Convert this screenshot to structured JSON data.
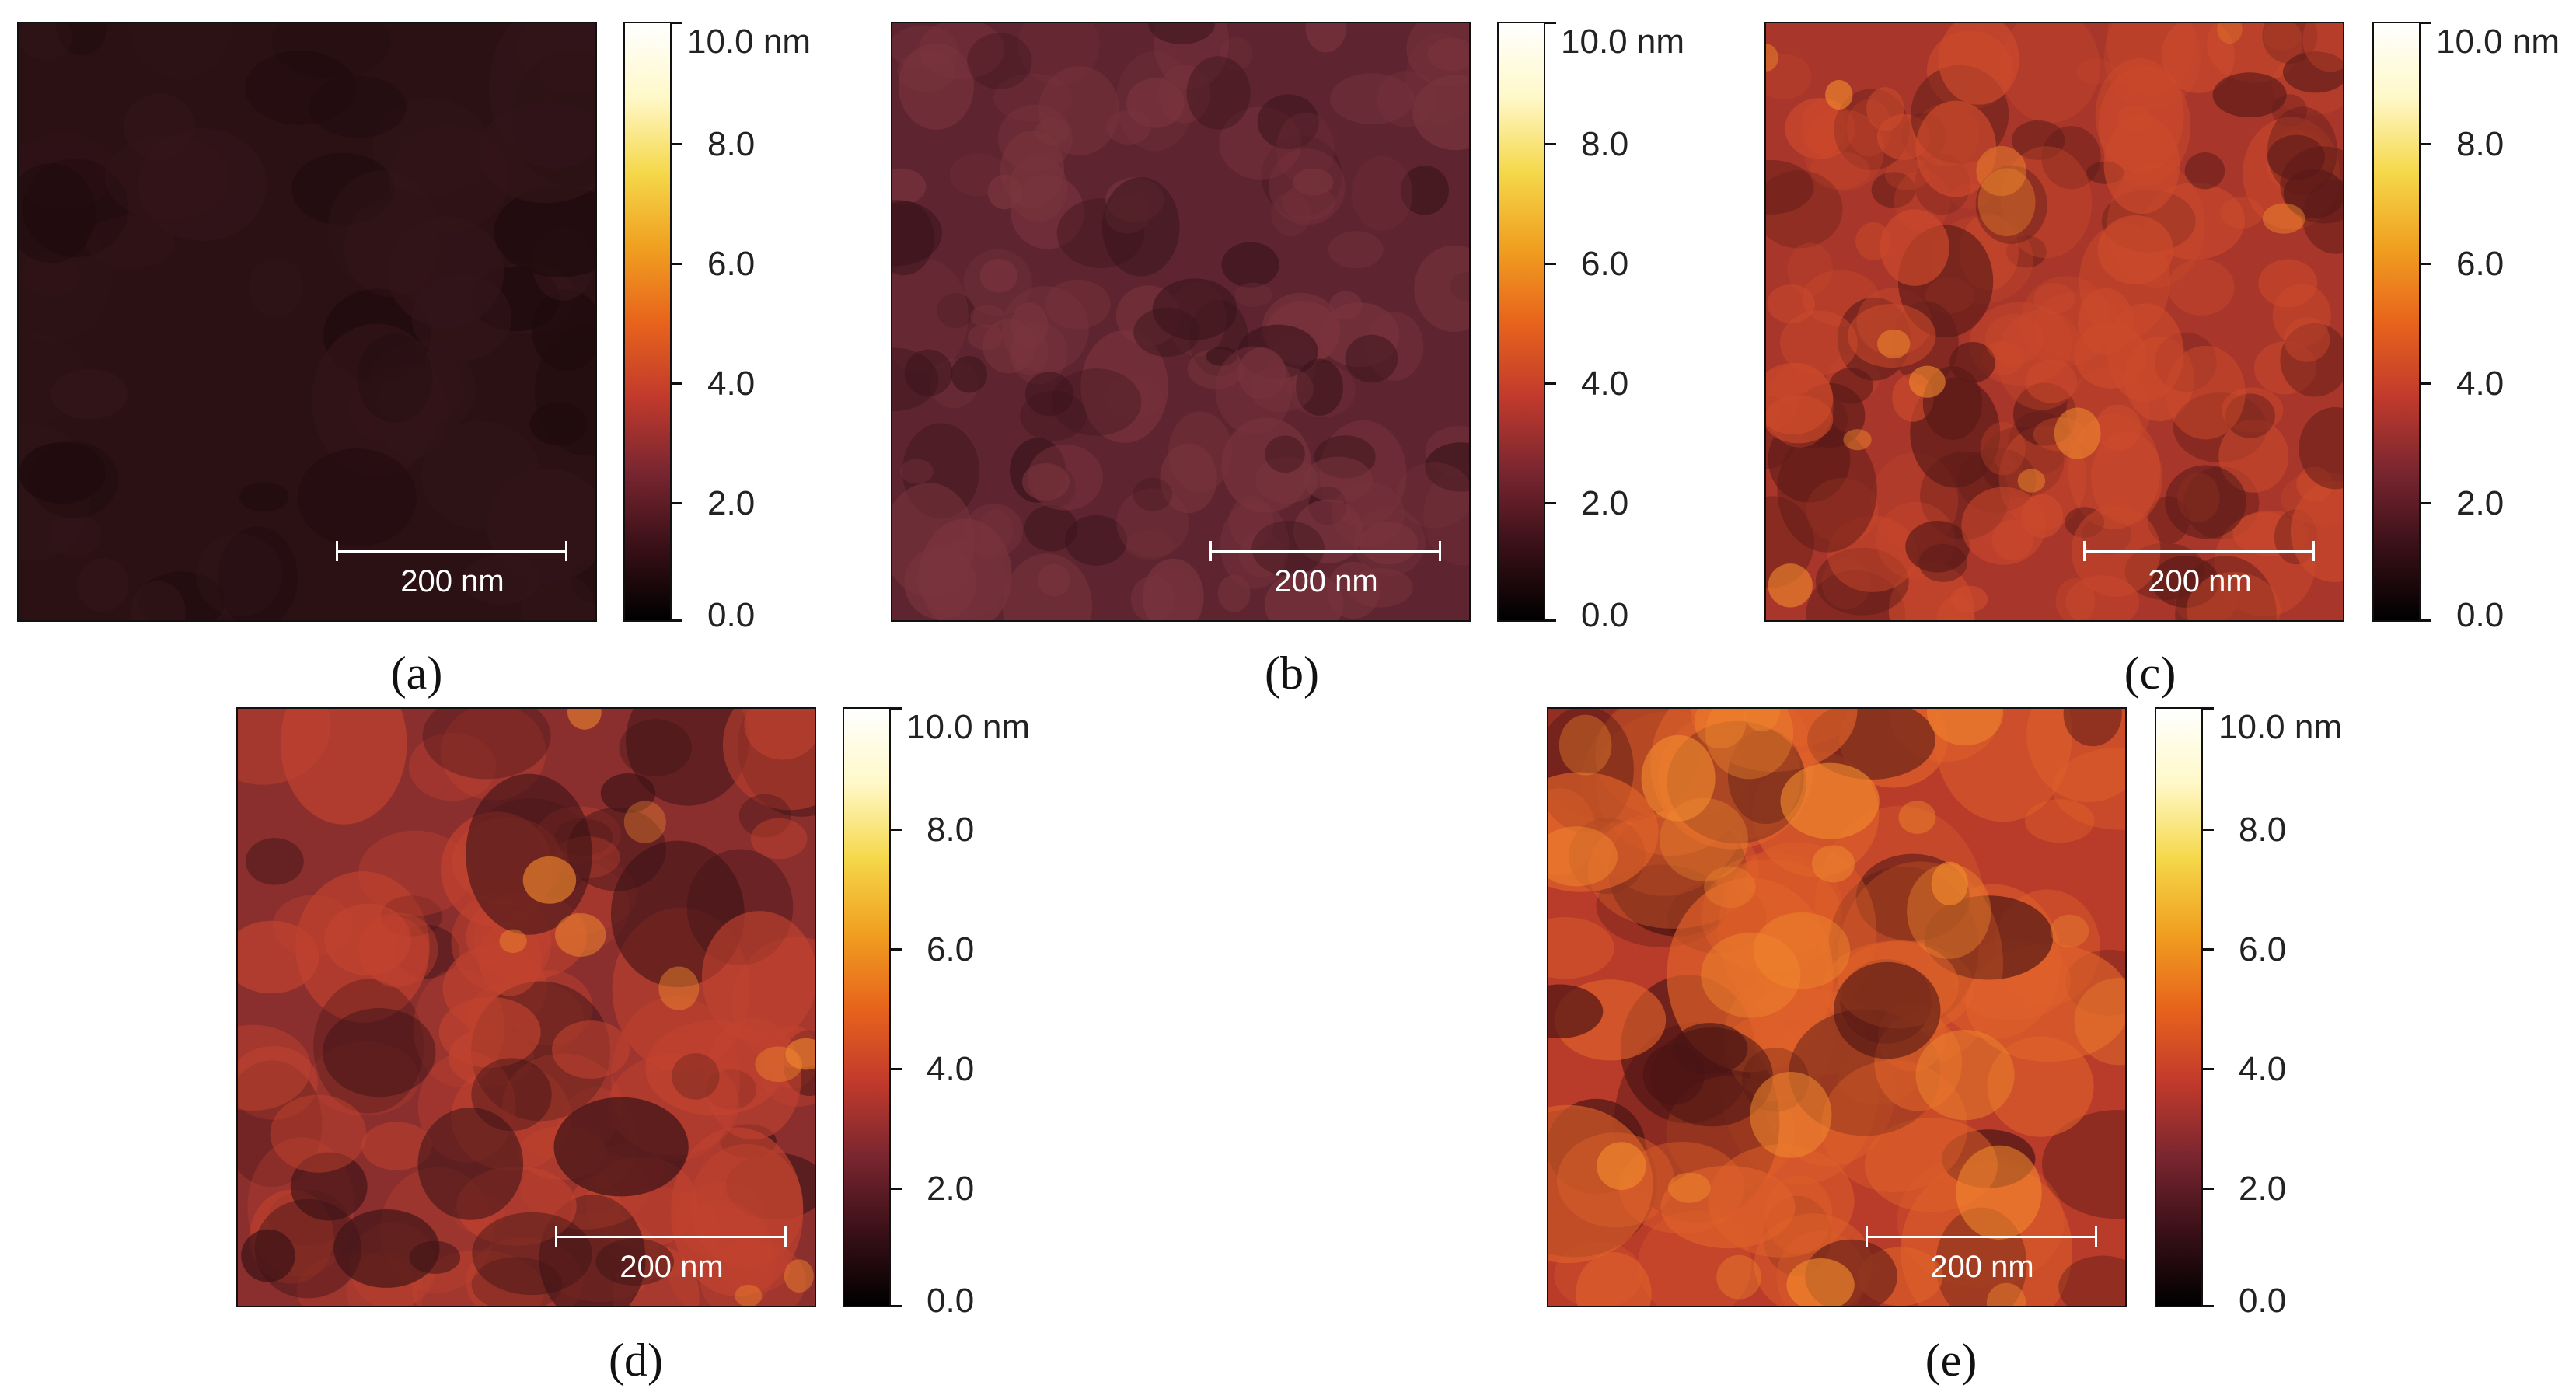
{
  "colorbar": {
    "gradient": [
      "#000000",
      "#3a1018",
      "#7a2630",
      "#c23a2c",
      "#e8641c",
      "#f0a020",
      "#f5d84a",
      "#fff8c8",
      "#ffffff"
    ],
    "ticks": [
      "0.0",
      "2.0",
      "4.0",
      "6.0",
      "8.0",
      "10.0 nm"
    ]
  },
  "panels": [
    {
      "caption": "(a)",
      "scalebar_label": "200 nm",
      "palette": {
        "base": "#2b1114",
        "grain": "#33151a",
        "shadow": "#1e0a0d"
      }
    },
    {
      "caption": "(b)",
      "scalebar_label": "200 nm",
      "palette": {
        "base": "#5e2530",
        "grain": "#7a343d",
        "shadow": "#3a141b"
      }
    },
    {
      "caption": "(c)",
      "scalebar_label": "200 nm",
      "palette": {
        "base": "#a8362a",
        "grain": "#cc4a2c",
        "shadow": "#5a1a18"
      }
    },
    {
      "caption": "(d)",
      "scalebar_label": "200 nm",
      "palette": {
        "base": "#8a2e2e",
        "grain": "#c2432f",
        "shadow": "#3a1216"
      }
    },
    {
      "caption": "(e)",
      "scalebar_label": "200 nm",
      "palette": {
        "base": "#b93b2a",
        "grain": "#e0622a",
        "shadow": "#4a1414"
      }
    }
  ]
}
